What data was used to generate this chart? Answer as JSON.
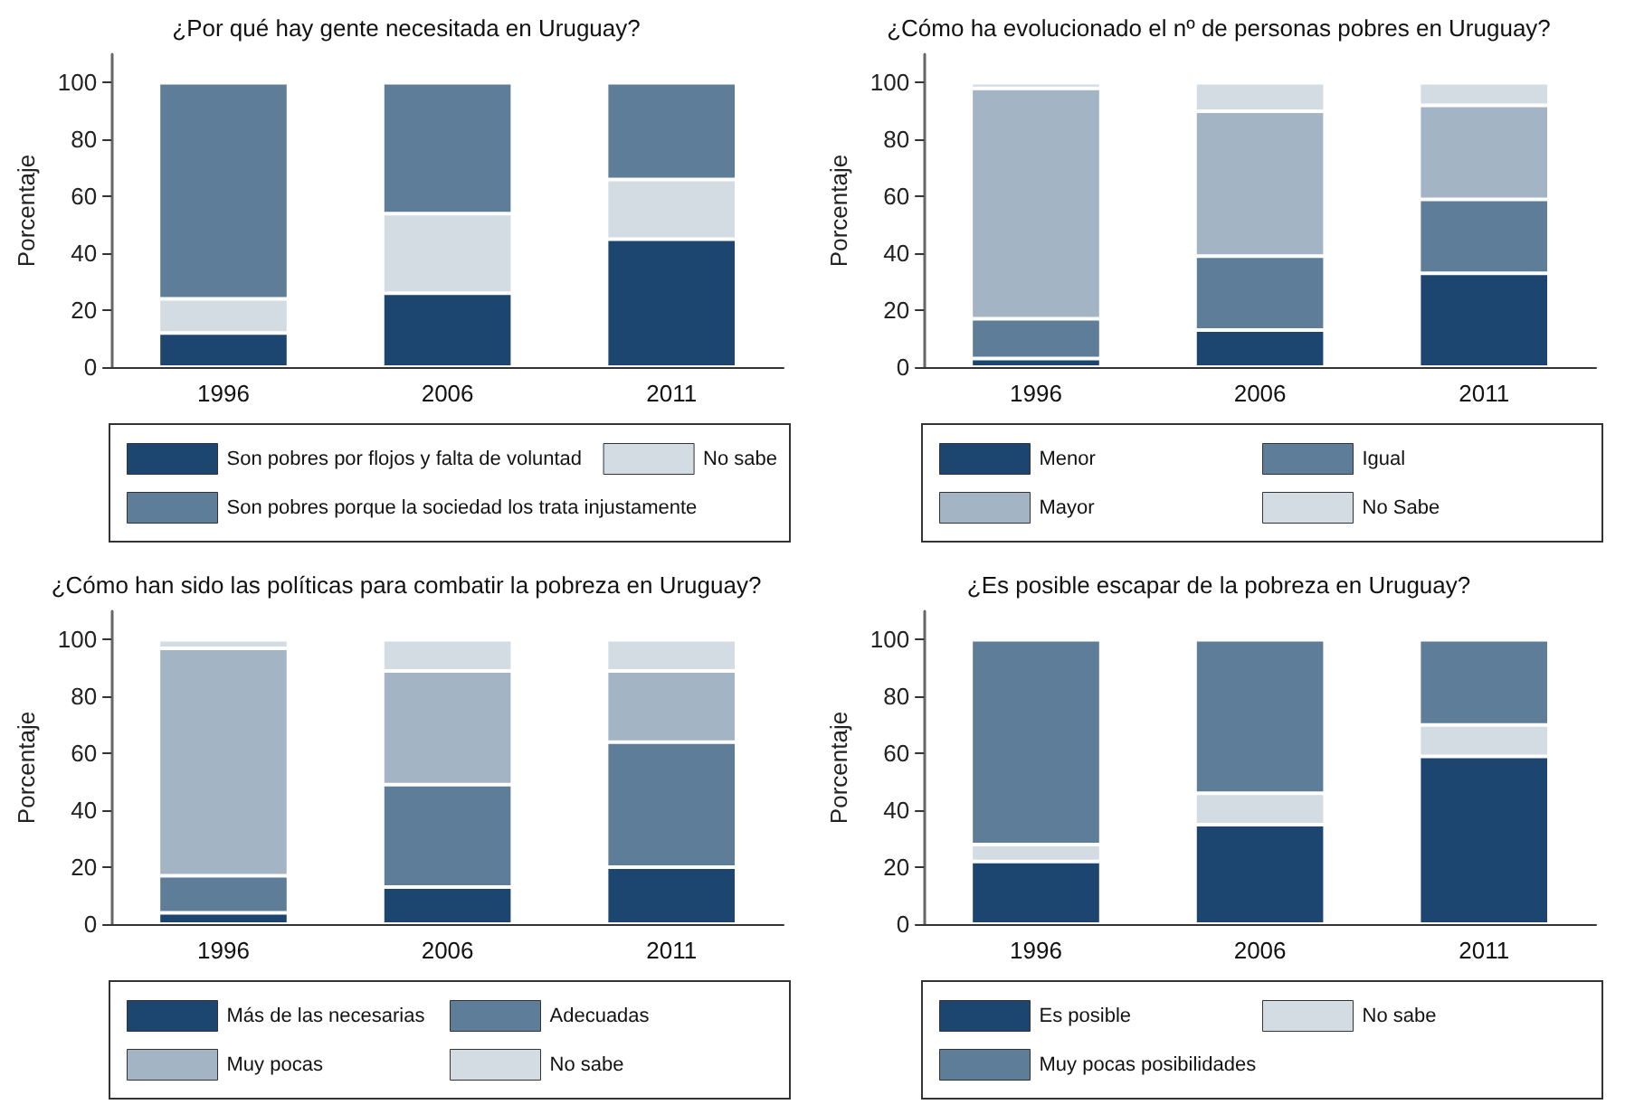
{
  "chart_data": [
    {
      "type": "bar",
      "stacked": true,
      "title": "¿Por qué hay gente necesitada en Uruguay?",
      "ylabel": "Porcentaje",
      "categories": [
        "1996",
        "2006",
        "2011"
      ],
      "ylim": [
        0,
        110
      ],
      "yticks": [
        0,
        20,
        40,
        60,
        80,
        100
      ],
      "grid": false,
      "legend": "bottom",
      "series": [
        {
          "name": "Son pobres por flojos y falta de voluntad",
          "color": "#1c4670",
          "values": [
            12,
            26,
            45
          ]
        },
        {
          "name": "No sabe",
          "color": "#d3dbe3",
          "values": [
            12,
            28,
            21
          ]
        },
        {
          "name": "Son pobres porque la sociedad los trata injustamente",
          "color": "#5e7d99",
          "values": [
            76,
            46,
            34
          ]
        }
      ]
    },
    {
      "type": "bar",
      "stacked": true,
      "title": "¿Cómo ha evolucionado el nº de personas pobres en Uruguay?",
      "ylabel": "Porcentaje",
      "categories": [
        "1996",
        "2006",
        "2011"
      ],
      "ylim": [
        0,
        110
      ],
      "yticks": [
        0,
        20,
        40,
        60,
        80,
        100
      ],
      "grid": false,
      "legend": "bottom",
      "series": [
        {
          "name": "Menor",
          "color": "#1c4670",
          "values": [
            3,
            13,
            33
          ]
        },
        {
          "name": "Igual",
          "color": "#5e7d99",
          "values": [
            14,
            26,
            26
          ]
        },
        {
          "name": "Mayor",
          "color": "#a3b4c4",
          "values": [
            81,
            51,
            33
          ]
        },
        {
          "name": "No Sabe",
          "color": "#d3dbe3",
          "values": [
            2,
            10,
            8
          ]
        }
      ]
    },
    {
      "type": "bar",
      "stacked": true,
      "title": "¿Cómo han sido las políticas para combatir la pobreza en Uruguay?",
      "ylabel": "Porcentaje",
      "categories": [
        "1996",
        "2006",
        "2011"
      ],
      "ylim": [
        0,
        110
      ],
      "yticks": [
        0,
        20,
        40,
        60,
        80,
        100
      ],
      "grid": false,
      "legend": "bottom",
      "series": [
        {
          "name": "Más de las necesarias",
          "color": "#1c4670",
          "values": [
            4,
            13,
            20
          ]
        },
        {
          "name": "Adecuadas",
          "color": "#5e7d99",
          "values": [
            13,
            36,
            44
          ]
        },
        {
          "name": "Muy pocas",
          "color": "#a3b4c4",
          "values": [
            80,
            40,
            25
          ]
        },
        {
          "name": "No sabe",
          "color": "#d3dbe3",
          "values": [
            3,
            11,
            11
          ]
        }
      ]
    },
    {
      "type": "bar",
      "stacked": true,
      "title": "¿Es posible escapar de la pobreza en Uruguay?",
      "ylabel": "Porcentaje",
      "categories": [
        "1996",
        "2006",
        "2011"
      ],
      "ylim": [
        0,
        110
      ],
      "yticks": [
        0,
        20,
        40,
        60,
        80,
        100
      ],
      "grid": false,
      "legend": "bottom",
      "series": [
        {
          "name": "Es posible",
          "color": "#1c4670",
          "values": [
            22,
            35,
            59
          ]
        },
        {
          "name": "No sabe",
          "color": "#d3dbe3",
          "values": [
            6,
            11,
            11
          ]
        },
        {
          "name": "Muy pocas posibilidades",
          "color": "#5e7d99",
          "values": [
            72,
            54,
            30
          ]
        }
      ]
    }
  ]
}
